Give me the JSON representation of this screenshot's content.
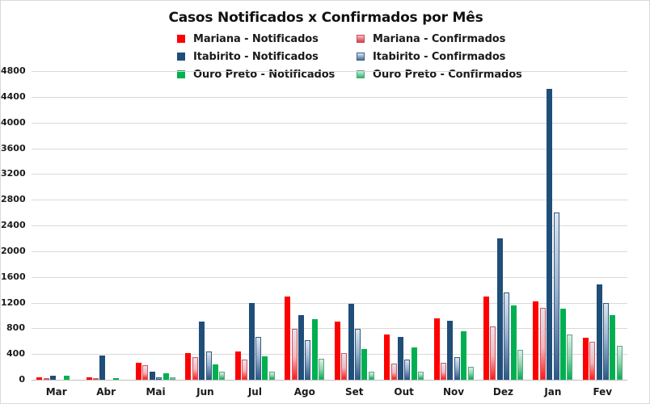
{
  "chart_data": {
    "type": "bar",
    "title": "Casos Notificados x Confirmados por Mês",
    "xlabel": "",
    "ylabel": "",
    "ylim": [
      0,
      4800
    ],
    "yticks": [
      0,
      400,
      800,
      1200,
      1600,
      2000,
      2400,
      2800,
      3200,
      3600,
      4000,
      4400,
      4800
    ],
    "grid": true,
    "legend_position": "top",
    "categories": [
      "Mar",
      "Abr",
      "Mai",
      "Jun",
      "Jul",
      "Ago",
      "Set",
      "Out",
      "Nov",
      "Dez",
      "Jan",
      "Fev"
    ],
    "series": [
      {
        "name": "Mariana - Notificados",
        "color": "#ff0000",
        "style": "solid",
        "values": [
          40,
          40,
          270,
          410,
          440,
          1290,
          900,
          710,
          960,
          1290,
          1220,
          650
        ]
      },
      {
        "name": "Mariana - Confirmados",
        "color": "#e8505b",
        "style": "gradient",
        "values": [
          10,
          25,
          225,
          350,
          310,
          790,
          420,
          250,
          260,
          830,
          1120,
          590
        ]
      },
      {
        "name": "Itabirito - Notificados",
        "color": "#1f4e79",
        "style": "solid",
        "values": [
          60,
          380,
          120,
          900,
          1190,
          1010,
          1180,
          670,
          920,
          2200,
          4530,
          1480
        ]
      },
      {
        "name": "Itabirito - Confirmados",
        "color": "#5a7fa8",
        "style": "gradient",
        "values": [
          0,
          0,
          35,
          440,
          670,
          620,
          790,
          320,
          350,
          1360,
          2600,
          1190
        ]
      },
      {
        "name": "Ouro Preto - Notificados",
        "color": "#00b050",
        "style": "solid",
        "values": [
          60,
          20,
          100,
          240,
          370,
          940,
          480,
          500,
          750,
          1160,
          1110,
          1010
        ]
      },
      {
        "name": "Ouro Preto - Confirmados",
        "color": "#5cc48a",
        "style": "gradient",
        "values": [
          0,
          0,
          40,
          130,
          130,
          330,
          130,
          130,
          200,
          460,
          700,
          530
        ]
      }
    ]
  }
}
